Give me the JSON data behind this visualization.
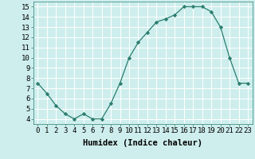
{
  "x": [
    0,
    1,
    2,
    3,
    4,
    5,
    6,
    7,
    8,
    9,
    10,
    11,
    12,
    13,
    14,
    15,
    16,
    17,
    18,
    19,
    20,
    21,
    22,
    23
  ],
  "y": [
    7.5,
    6.5,
    5.3,
    4.5,
    4.0,
    4.5,
    4.0,
    4.0,
    5.5,
    7.5,
    10.0,
    11.5,
    12.5,
    13.5,
    13.8,
    14.2,
    15.0,
    15.0,
    15.0,
    14.5,
    13.0,
    10.0,
    7.5,
    7.5
  ],
  "line_color": "#2a7d6e",
  "marker": "D",
  "marker_size": 2.2,
  "bg_color": "#ceeeed",
  "grid_color": "#ffffff",
  "xlabel": "Humidex (Indice chaleur)",
  "xlim": [
    -0.5,
    23.5
  ],
  "ylim": [
    3.5,
    15.5
  ],
  "yticks": [
    4,
    5,
    6,
    7,
    8,
    9,
    10,
    11,
    12,
    13,
    14,
    15
  ],
  "xticks": [
    0,
    1,
    2,
    3,
    4,
    5,
    6,
    7,
    8,
    9,
    10,
    11,
    12,
    13,
    14,
    15,
    16,
    17,
    18,
    19,
    20,
    21,
    22,
    23
  ],
  "xlabel_fontsize": 7.5,
  "tick_fontsize": 6.5
}
